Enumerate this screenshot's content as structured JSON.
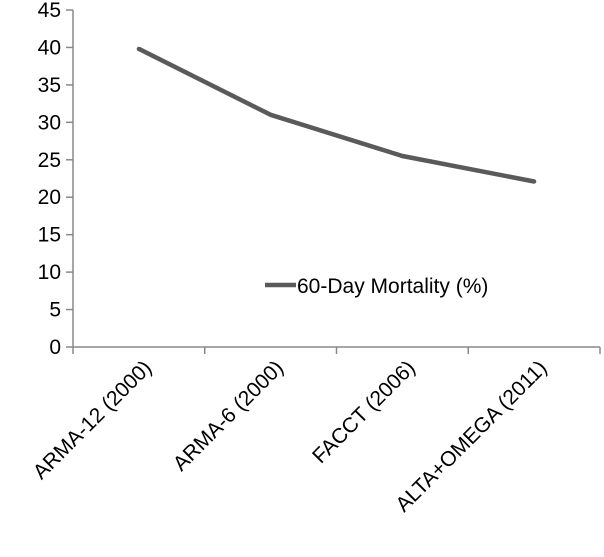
{
  "chart_data": {
    "type": "line",
    "title": "",
    "xlabel": "",
    "ylabel": "",
    "categories": [
      "ARMA-12 (2000)",
      "ARMA-6 (2000)",
      "FACCT (2006)",
      "ALTA+OMEGA (2011)"
    ],
    "series": [
      {
        "name": "60-Day Mortality (%)",
        "values": [
          39.8,
          31.0,
          25.5,
          22.1
        ]
      }
    ],
    "ylim": [
      0,
      45
    ],
    "yticks": [
      "0",
      "5",
      "10",
      "15",
      "20",
      "25",
      "30",
      "35",
      "40",
      "45"
    ],
    "grid": false,
    "legend": "inside-lower-right",
    "colors": {
      "line": "#5a5a5a",
      "axis": "#888888"
    }
  }
}
